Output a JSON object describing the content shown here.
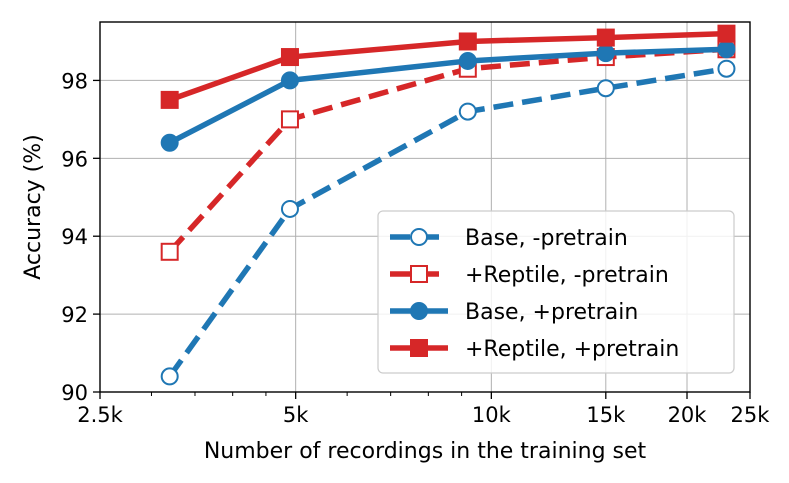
{
  "chart_data": {
    "type": "line",
    "title": "",
    "xlabel": "Number of recordings in the training set",
    "ylabel": "Accuracy (%)",
    "xscale": "log",
    "xlim": [
      2500,
      25000
    ],
    "ylim": [
      90,
      99.5
    ],
    "x_ticks": [
      {
        "value": 2500,
        "label": "2.5k"
      },
      {
        "value": 5000,
        "label": "5k"
      },
      {
        "value": 10000,
        "label": "10k"
      },
      {
        "value": 15000,
        "label": "15k"
      },
      {
        "value": 20000,
        "label": "20k"
      },
      {
        "value": 25000,
        "label": "25k"
      }
    ],
    "y_ticks": [
      {
        "value": 90,
        "label": "90"
      },
      {
        "value": 92,
        "label": "92"
      },
      {
        "value": 94,
        "label": "94"
      },
      {
        "value": 96,
        "label": "96"
      },
      {
        "value": 98,
        "label": "98"
      }
    ],
    "grid": true,
    "legend_position": "bottom-right",
    "x": [
      3200,
      4900,
      9200,
      15000,
      23000
    ],
    "series": [
      {
        "name": "Base, -pretrain",
        "values": [
          90.4,
          94.7,
          97.2,
          97.8,
          98.3
        ],
        "color": "#1f77b4",
        "linestyle": "dashed",
        "marker": "circle",
        "filled": false
      },
      {
        "name": "+Reptile, -pretrain",
        "values": [
          93.6,
          97.0,
          98.3,
          98.6,
          98.8
        ],
        "color": "#d62728",
        "linestyle": "dashed",
        "marker": "square",
        "filled": false
      },
      {
        "name": "Base, +pretrain",
        "values": [
          96.4,
          98.0,
          98.5,
          98.7,
          98.8
        ],
        "color": "#1f77b4",
        "linestyle": "solid",
        "marker": "circle",
        "filled": true
      },
      {
        "name": "+Reptile, +pretrain",
        "values": [
          97.5,
          98.6,
          99.0,
          99.1,
          99.2
        ],
        "color": "#d62728",
        "linestyle": "solid",
        "marker": "square",
        "filled": true
      }
    ]
  }
}
